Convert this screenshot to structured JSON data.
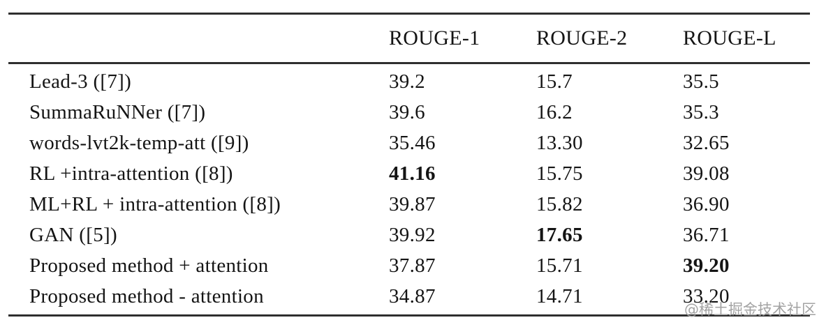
{
  "table": {
    "method_column_header": "",
    "columns": [
      "ROUGE-1",
      "ROUGE-2",
      "ROUGE-L"
    ],
    "rows": [
      {
        "method": "Lead-3 ([7])",
        "values": [
          "39.2",
          "15.7",
          "35.5"
        ],
        "bold": []
      },
      {
        "method": "SummaRuNNer ([7])",
        "values": [
          "39.6",
          "16.2",
          "35.3"
        ],
        "bold": []
      },
      {
        "method": "words-lvt2k-temp-att ([9])",
        "values": [
          "35.46",
          "13.30",
          "32.65"
        ],
        "bold": []
      },
      {
        "method": "RL +intra-attention ([8])",
        "values": [
          "41.16",
          "15.75",
          "39.08"
        ],
        "bold": [
          0
        ]
      },
      {
        "method": "ML+RL + intra-attention ([8])",
        "values": [
          "39.87",
          "15.82",
          "36.90"
        ],
        "bold": []
      },
      {
        "method": "GAN ([5])",
        "values": [
          "39.92",
          "17.65",
          "36.71"
        ],
        "bold": [
          1
        ]
      },
      {
        "method": "Proposed method + attention",
        "values": [
          "37.87",
          "15.71",
          "39.20"
        ],
        "bold": [
          2
        ]
      },
      {
        "method": "Proposed method - attention",
        "values": [
          "34.87",
          "14.71",
          "33.20"
        ],
        "bold": []
      }
    ]
  },
  "watermark": "@稀土掘金技术社区",
  "colors": {
    "background": "#ffffff",
    "text": "#141414",
    "rule": "#2e2e2e",
    "watermark": "#a3a3a3"
  }
}
